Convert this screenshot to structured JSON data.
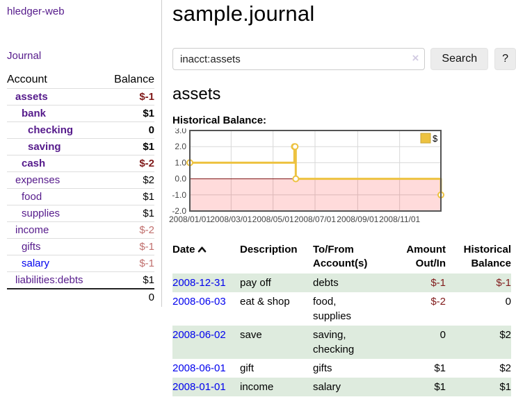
{
  "app": {
    "brand": "hledger-web",
    "nav": {
      "journal": "Journal"
    }
  },
  "sidebar": {
    "header": {
      "account": "Account",
      "balance": "Balance"
    },
    "accounts": [
      {
        "name": "assets",
        "depth": 0,
        "bold": true,
        "balance": "$-1",
        "balance_tone": "neg-strong",
        "visited": true
      },
      {
        "name": "bank",
        "depth": 1,
        "bold": true,
        "balance": "$1",
        "balance_tone": "",
        "visited": true
      },
      {
        "name": "checking",
        "depth": 2,
        "bold": true,
        "balance": "0",
        "balance_tone": "",
        "visited": true
      },
      {
        "name": "saving",
        "depth": 2,
        "bold": true,
        "balance": "$1",
        "balance_tone": "",
        "visited": true
      },
      {
        "name": "cash",
        "depth": 1,
        "bold": true,
        "balance": "$-2",
        "balance_tone": "neg-strong",
        "visited": true
      },
      {
        "name": "expenses",
        "depth": 0,
        "bold": false,
        "balance": "$2",
        "balance_tone": "",
        "visited": true
      },
      {
        "name": "food",
        "depth": 1,
        "bold": false,
        "balance": "$1",
        "balance_tone": "",
        "visited": true
      },
      {
        "name": "supplies",
        "depth": 1,
        "bold": false,
        "balance": "$1",
        "balance_tone": "",
        "visited": true
      },
      {
        "name": "income",
        "depth": 0,
        "bold": false,
        "balance": "$-2",
        "balance_tone": "neg-soft",
        "visited": true
      },
      {
        "name": "gifts",
        "depth": 1,
        "bold": false,
        "balance": "$-1",
        "balance_tone": "neg-soft",
        "visited": true
      },
      {
        "name": "salary",
        "depth": 1,
        "bold": false,
        "balance": "$-1",
        "balance_tone": "neg-soft",
        "visited": false
      },
      {
        "name": "liabilities:debts",
        "depth": 0,
        "bold": false,
        "balance": "$1",
        "balance_tone": "",
        "visited": true
      }
    ],
    "total": "0"
  },
  "main": {
    "title": "sample.journal",
    "search": {
      "value": "inacct:assets",
      "clear_icon": "×",
      "search_button": "Search",
      "help_button": "?"
    },
    "account_heading": "assets",
    "chart_title": "Historical Balance:"
  },
  "chart_data": {
    "type": "line",
    "title": "Historical Balance:",
    "style": "steps",
    "x_start": "2008-01-01",
    "x_end": "2008-12-31",
    "ylim": [
      -2,
      3
    ],
    "y_ticks": [
      3,
      2,
      1,
      0,
      -1,
      -2
    ],
    "x_ticks": [
      "2008/01/01",
      "2008/03/01",
      "2008/05/01",
      "2008/07/01",
      "2008/09/01",
      "2008/11/01"
    ],
    "series": [
      {
        "name": "$",
        "color": "#EDC240",
        "points": [
          {
            "x": "2008-01-01",
            "y": 1
          },
          {
            "x": "2008-06-01",
            "y": 2
          },
          {
            "x": "2008-06-02",
            "y": 2
          },
          {
            "x": "2008-06-03",
            "y": 0
          },
          {
            "x": "2008-12-31",
            "y": -1
          }
        ]
      }
    ],
    "legend_position": "top-right",
    "grid": true,
    "grid_color": "#d8d8d8",
    "border_color": "#545454",
    "negative_region_color": "rgba(255,0,0,0.14)",
    "zero_line_color": "#7c1010"
  },
  "register": {
    "headers": {
      "date": "Date",
      "description": "Description",
      "accounts": "To/From Account(s)",
      "amount": "Amount Out/In",
      "balance": "Historical Balance"
    },
    "rows": [
      {
        "date": "2008-12-31",
        "description": "pay off",
        "accounts": "debts",
        "amount": "$-1",
        "balance": "$-1"
      },
      {
        "date": "2008-06-03",
        "description": "eat & shop",
        "accounts": "food, supplies",
        "amount": "$-2",
        "balance": "0"
      },
      {
        "date": "2008-06-02",
        "description": "save",
        "accounts": "saving, checking",
        "amount": "0",
        "balance": "$2"
      },
      {
        "date": "2008-06-01",
        "description": "gift",
        "accounts": "gifts",
        "amount": "$1",
        "balance": "$2"
      },
      {
        "date": "2008-01-01",
        "description": "income",
        "accounts": "salary",
        "amount": "$1",
        "balance": "$1"
      }
    ]
  }
}
